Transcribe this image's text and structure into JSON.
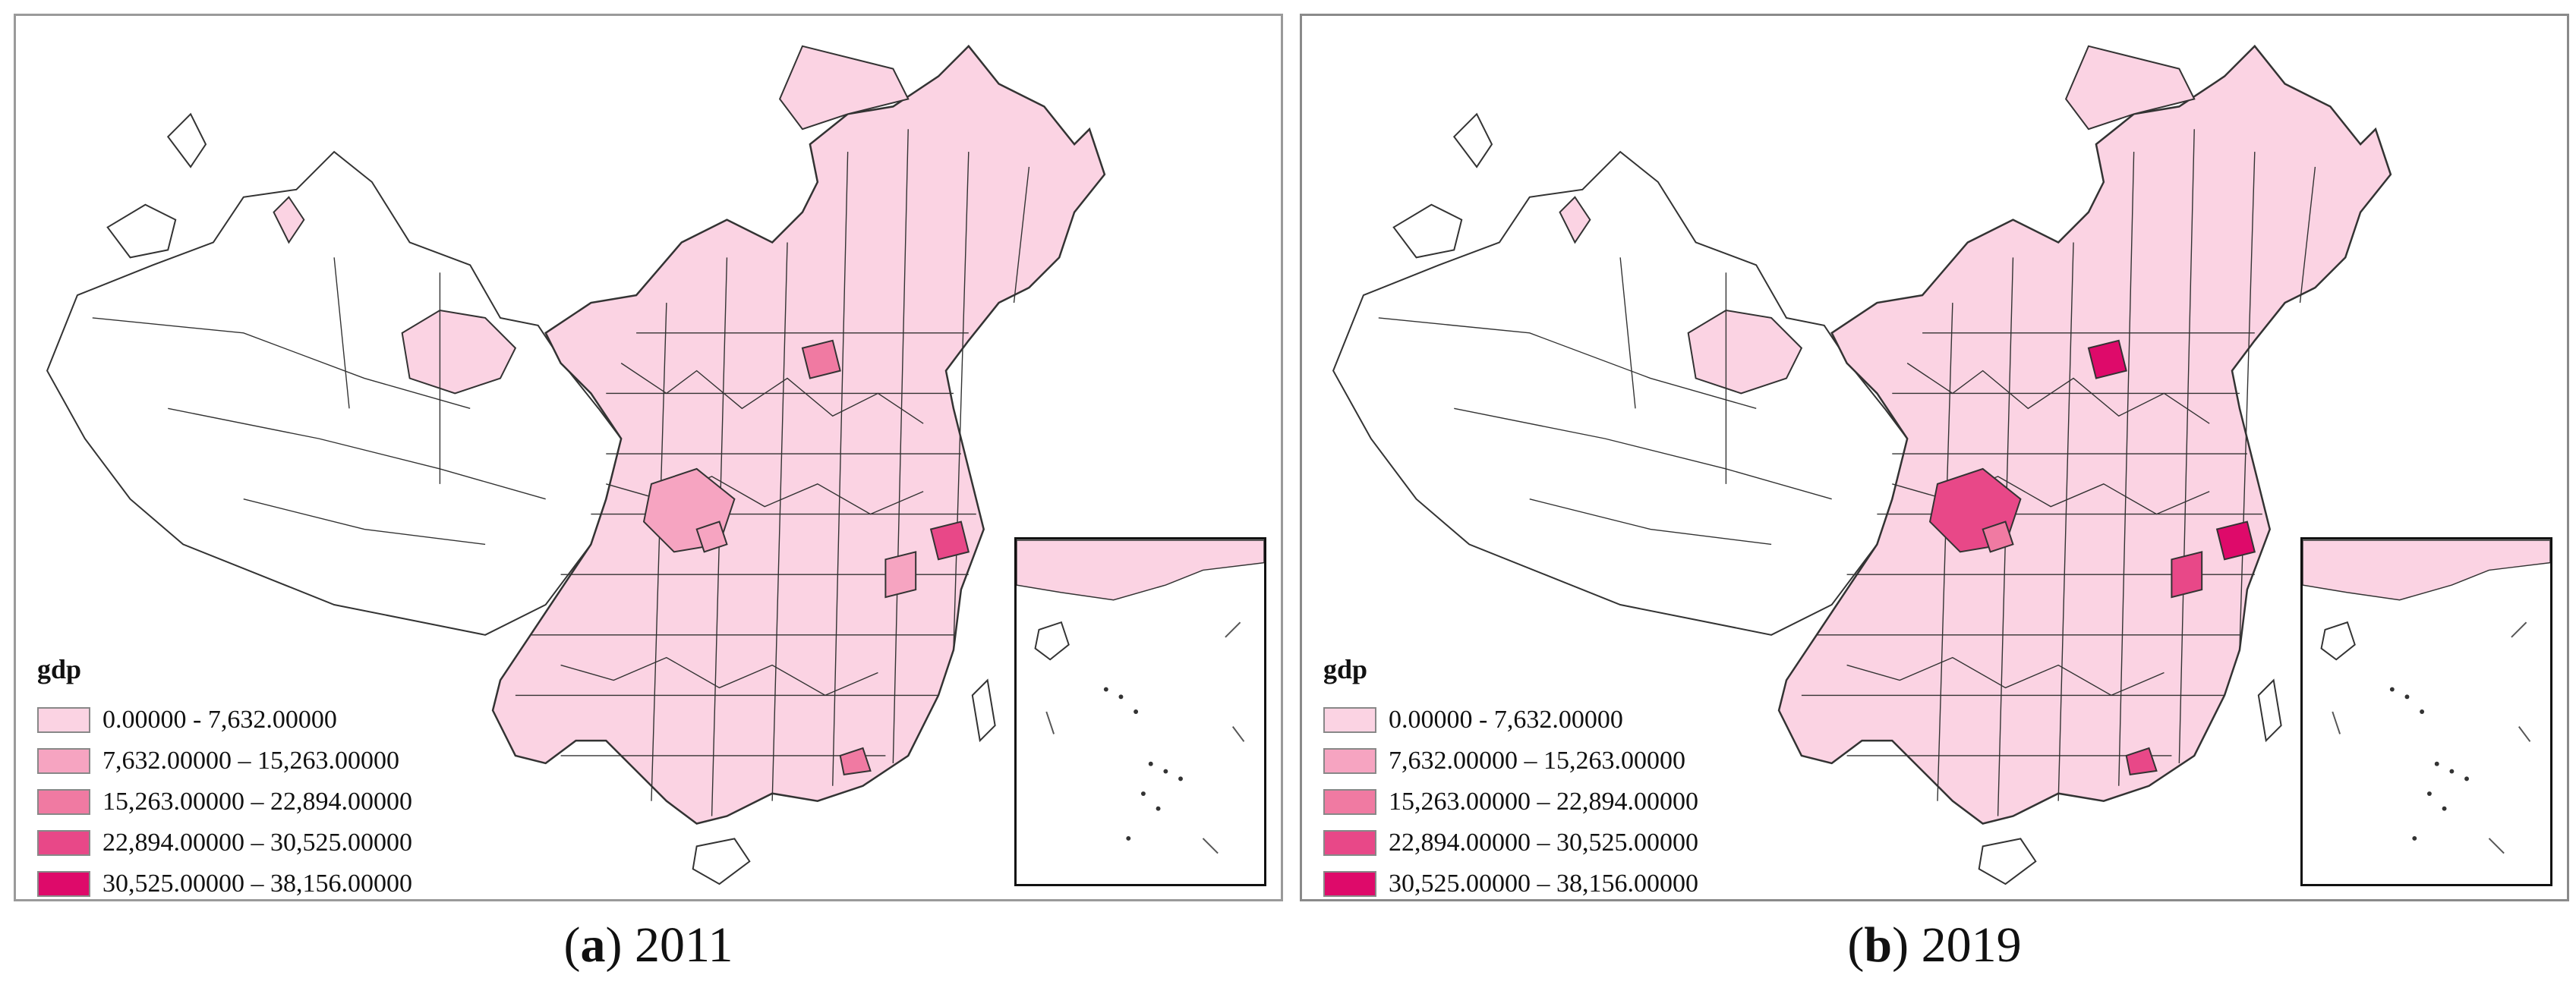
{
  "panels": [
    {
      "id": "a",
      "letter": "a",
      "caption": "2011",
      "highlight_classes": [
        1,
        2,
        3,
        1,
        1,
        2
      ]
    },
    {
      "id": "b",
      "letter": "b",
      "caption": "2019",
      "highlight_classes": [
        3,
        4,
        4,
        2,
        3,
        3
      ]
    }
  ],
  "legend": {
    "title": "gdp",
    "items": [
      {
        "label": "0.00000 - 7,632.00000",
        "color": "#fbd3e3"
      },
      {
        "label": "7,632.00000 – 15,263.00000",
        "color": "#f6a4c1"
      },
      {
        "label": "15,263.00000 – 22,894.00000",
        "color": "#f07aa2"
      },
      {
        "label": "22,894.00000 – 30,525.00000",
        "color": "#e84888"
      },
      {
        "label": "30,525.00000 – 38,156.00000",
        "color": "#de0a6a"
      }
    ]
  },
  "colors": {
    "unfilled_region": "#ffffff",
    "boundary": "#333333",
    "sea_inset": "#fbd3e3"
  }
}
